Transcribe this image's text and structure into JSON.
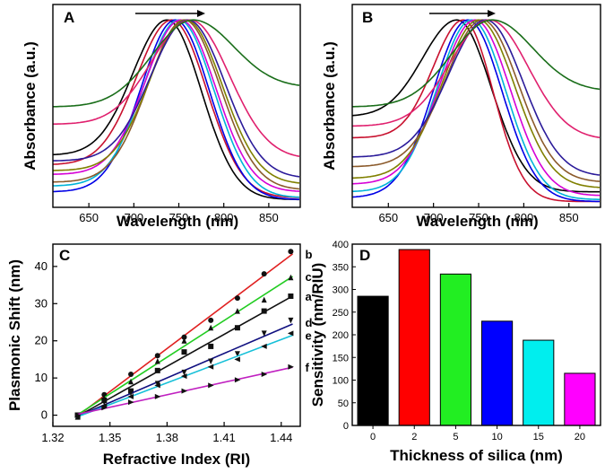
{
  "chart_data": [
    {
      "panel": "A",
      "type": "line",
      "xlabel": "Wavelength (nm)",
      "ylabel": "Absorbance (a.u.)",
      "xlim": [
        610,
        885
      ],
      "ylim": [
        0,
        1.05
      ],
      "xticks": [
        650,
        700,
        750,
        800,
        850
      ],
      "annotations": [
        "shift-arrow-right"
      ],
      "series": [
        {
          "color": "#000000",
          "peak": 737,
          "width": 38,
          "baseline": 0.27,
          "tail": 0.04
        },
        {
          "color": "#c8102e",
          "peak": 742,
          "width": 39,
          "baseline": 0.22,
          "tail": 0.05
        },
        {
          "color": "#0000e6",
          "peak": 746,
          "width": 38,
          "baseline": 0.08,
          "tail": 0.04
        },
        {
          "color": "#00b4d8",
          "peak": 750,
          "width": 39,
          "baseline": 0.11,
          "tail": 0.05
        },
        {
          "color": "#d600d6",
          "peak": 752,
          "width": 39,
          "baseline": 0.17,
          "tail": 0.08
        },
        {
          "color": "#8b5a2b",
          "peak": 756,
          "width": 40,
          "baseline": 0.13,
          "tail": 0.09
        },
        {
          "color": "#808000",
          "peak": 758,
          "width": 40,
          "baseline": 0.19,
          "tail": 0.12
        },
        {
          "color": "#2b1b9a",
          "peak": 760,
          "width": 41,
          "baseline": 0.24,
          "tail": 0.15
        },
        {
          "color": "#e0206e",
          "peak": 763,
          "width": 43,
          "baseline": 0.43,
          "tail": 0.25
        },
        {
          "color": "#1a6e1a",
          "peak": 766,
          "width": 45,
          "baseline": 0.52,
          "tail": 0.62
        }
      ]
    },
    {
      "panel": "B",
      "type": "line",
      "xlabel": "Wavelength (nm)",
      "ylabel": "Absorbance (a.u.)",
      "xlim": [
        610,
        885
      ],
      "ylim": [
        0,
        1.05
      ],
      "xticks": [
        650,
        700,
        750,
        800,
        850
      ],
      "annotations": [
        "shift-arrow-right"
      ],
      "series": [
        {
          "color": "#000000",
          "peak": 726,
          "width": 38,
          "baseline": 0.47,
          "tail": 0.08
        },
        {
          "color": "#c8102e",
          "peak": 733,
          "width": 33,
          "baseline": 0.36,
          "tail": 0.03
        },
        {
          "color": "#0000e6",
          "peak": 738,
          "width": 38,
          "baseline": 0.05,
          "tail": 0.03
        },
        {
          "color": "#00b4d8",
          "peak": 742,
          "width": 38,
          "baseline": 0.08,
          "tail": 0.04
        },
        {
          "color": "#d600d6",
          "peak": 746,
          "width": 39,
          "baseline": 0.12,
          "tail": 0.06
        },
        {
          "color": "#808000",
          "peak": 750,
          "width": 40,
          "baseline": 0.15,
          "tail": 0.1
        },
        {
          "color": "#8b5a2b",
          "peak": 754,
          "width": 40,
          "baseline": 0.21,
          "tail": 0.13
        },
        {
          "color": "#2b1b9a",
          "peak": 758,
          "width": 41,
          "baseline": 0.26,
          "tail": 0.16
        },
        {
          "color": "#e0206e",
          "peak": 762,
          "width": 43,
          "baseline": 0.42,
          "tail": 0.35
        },
        {
          "color": "#1a6e1a",
          "peak": 765,
          "width": 45,
          "baseline": 0.52,
          "tail": 0.6
        }
      ]
    },
    {
      "panel": "C",
      "type": "scatter",
      "xlabel": "Refractive Index (RI)",
      "ylabel": "Plasmonic Shift (nm)",
      "xlim": [
        1.32,
        1.45
      ],
      "ylim": [
        -3,
        46
      ],
      "xticks": [
        1.32,
        1.35,
        1.38,
        1.41,
        1.44
      ],
      "yticks": [
        0,
        10,
        20,
        30,
        40
      ],
      "x": [
        1.333,
        1.347,
        1.361,
        1.375,
        1.389,
        1.403,
        1.417,
        1.431,
        1.445
      ],
      "series": [
        {
          "name": "b",
          "color": "#e02020",
          "marker": "circle",
          "values": [
            0,
            5.5,
            11,
            16,
            21,
            25.5,
            31.5,
            38,
            44
          ]
        },
        {
          "name": "c",
          "color": "#22cc22",
          "marker": "triangle-up",
          "values": [
            -0.5,
            4.5,
            9,
            14.5,
            20,
            23.5,
            28,
            31,
            37
          ]
        },
        {
          "name": "a",
          "color": "#111111",
          "marker": "square",
          "values": [
            0,
            4,
            6.5,
            12,
            17,
            18.5,
            23.5,
            28,
            32
          ]
        },
        {
          "name": "d",
          "color": "#101080",
          "marker": "triangle-down",
          "values": [
            0,
            3.5,
            6,
            8.5,
            11.5,
            14.5,
            16.5,
            22,
            25.5
          ]
        },
        {
          "name": "e",
          "color": "#16c0d8",
          "marker": "triangle-left",
          "values": [
            -0.5,
            2.5,
            5,
            8,
            10.5,
            13,
            15,
            18.5,
            22
          ]
        },
        {
          "name": "f",
          "color": "#c020c0",
          "marker": "triangle-right",
          "values": [
            0,
            2,
            3.5,
            5,
            6.5,
            8,
            9.5,
            11,
            13
          ]
        }
      ]
    },
    {
      "panel": "D",
      "type": "bar",
      "xlabel": "Thickness of silica (nm)",
      "ylabel": "Sensitivity (nm/RIU)",
      "categories": [
        "0",
        "2",
        "5",
        "10",
        "15",
        "20"
      ],
      "values": [
        285,
        388,
        334,
        230,
        188,
        115
      ],
      "colors": [
        "#000000",
        "#ff0000",
        "#22ee22",
        "#0000ff",
        "#00eeee",
        "#ff00ff"
      ],
      "ylim": [
        0,
        400
      ],
      "yticks": [
        0,
        50,
        100,
        150,
        200,
        250,
        300,
        350,
        400
      ]
    }
  ]
}
